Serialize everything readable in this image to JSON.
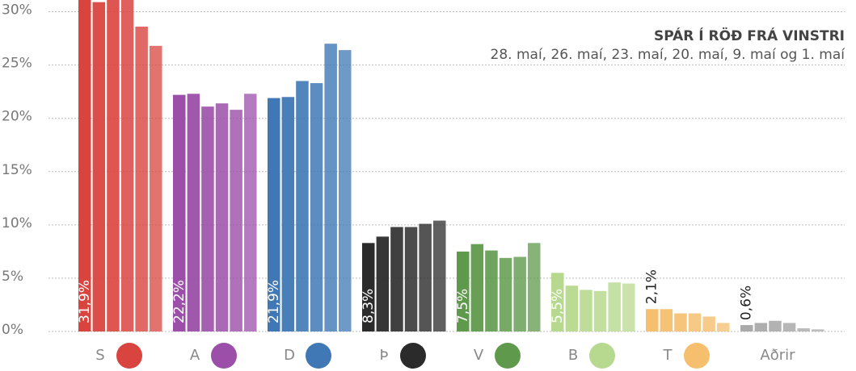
{
  "chart_data": {
    "type": "bar",
    "title": "SPÁR Í RÖÐ FRÁ VINSTRI",
    "subtitle": "28. maí, 26. maí, 23. maí, 20. maí, 9. maí og 1. maí",
    "categories": [
      "S",
      "A",
      "D",
      "Þ",
      "V",
      "B",
      "T",
      "Aðrir"
    ],
    "colors": [
      "#d9443f",
      "#9b4fa8",
      "#3f78b5",
      "#2b2b2b",
      "#5f9a4c",
      "#b7d98f",
      "#f5bf6e",
      "#aaaaaa"
    ],
    "values": [
      [
        31.9,
        30.9,
        31.5,
        31.5,
        28.6,
        26.8
      ],
      [
        22.2,
        22.3,
        21.1,
        21.4,
        20.8,
        22.3
      ],
      [
        21.9,
        22.0,
        23.5,
        23.3,
        27.0,
        26.4
      ],
      [
        8.3,
        8.9,
        9.8,
        9.8,
        10.1,
        10.4
      ],
      [
        7.5,
        8.2,
        7.6,
        6.9,
        7.0,
        8.3
      ],
      [
        5.5,
        4.3,
        3.9,
        3.8,
        4.6,
        4.5
      ],
      [
        2.1,
        2.1,
        1.7,
        1.7,
        1.4,
        0.8
      ],
      [
        0.6,
        0.8,
        1.0,
        0.8,
        0.3,
        0.2
      ]
    ],
    "value_labels": [
      "31,9%",
      "22,2%",
      "21,9%",
      "8,3%",
      "7,5%",
      "5,5%",
      "2,1%",
      "0,6%"
    ],
    "ylim": [
      0,
      31.1
    ],
    "yticks": [
      {
        "value": 0,
        "label": "0%"
      },
      {
        "value": 5,
        "label": "5%"
      },
      {
        "value": 10,
        "label": "10%"
      },
      {
        "value": 15,
        "label": "15%"
      },
      {
        "value": 20,
        "label": "20%"
      },
      {
        "value": 25,
        "label": "25%"
      },
      {
        "value": 30,
        "label": "30%"
      }
    ],
    "grid": true
  }
}
